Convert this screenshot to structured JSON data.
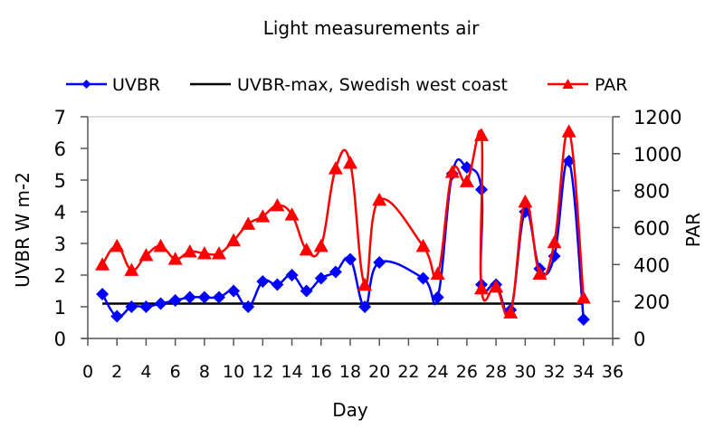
{
  "chart_data": {
    "type": "line",
    "title": "Light measurements air",
    "xlabel": "Day",
    "ylabel": "UVBR W m-2",
    "y2label": "PAR",
    "xlim": [
      0,
      36
    ],
    "ylim": [
      0,
      7
    ],
    "y2lim": [
      0,
      1200
    ],
    "xticks": [
      0,
      2,
      4,
      6,
      8,
      10,
      12,
      14,
      16,
      18,
      20,
      22,
      24,
      26,
      28,
      30,
      32,
      34,
      36
    ],
    "yticks": [
      0,
      1,
      2,
      3,
      4,
      5,
      6,
      7
    ],
    "y2ticks": [
      0,
      200,
      400,
      600,
      800,
      1000,
      1200
    ],
    "grid": false,
    "legend_position": "top",
    "series": [
      {
        "name": "UVBR",
        "axis": "left",
        "color": "#0000ff",
        "marker": "diamond",
        "x": [
          1,
          2,
          3,
          4,
          5,
          6,
          7,
          8,
          9,
          10,
          11,
          12,
          13,
          14,
          15,
          16,
          17,
          18,
          19,
          20,
          23,
          24,
          25,
          26,
          27,
          27,
          28,
          29,
          30,
          31,
          32,
          33,
          34
        ],
        "y": [
          1.4,
          0.7,
          1.0,
          1.0,
          1.1,
          1.2,
          1.3,
          1.3,
          1.3,
          1.5,
          1.0,
          1.8,
          1.7,
          2.0,
          1.5,
          1.9,
          2.1,
          2.5,
          1.0,
          2.4,
          1.9,
          1.3,
          5.2,
          5.4,
          4.7,
          1.7,
          1.7,
          0.9,
          4.0,
          2.2,
          2.6,
          5.6,
          0.6
        ]
      },
      {
        "name": "UVBR-max, Swedish west coast",
        "axis": "left",
        "color": "#000000",
        "marker": "none",
        "x": [
          1,
          34
        ],
        "y": [
          1.1,
          1.1
        ]
      },
      {
        "name": "PAR",
        "axis": "right",
        "color": "#ff0000",
        "marker": "triangle",
        "x": [
          1,
          2,
          3,
          4,
          5,
          6,
          7,
          8,
          9,
          10,
          11,
          12,
          13,
          14,
          15,
          16,
          17,
          18,
          19,
          20,
          23,
          24,
          25,
          26,
          27,
          27,
          28,
          29,
          30,
          31,
          32,
          33,
          34
        ],
        "y": [
          400,
          500,
          370,
          450,
          500,
          430,
          470,
          460,
          460,
          530,
          620,
          660,
          720,
          670,
          480,
          500,
          920,
          950,
          290,
          750,
          500,
          350,
          900,
          850,
          1100,
          270,
          280,
          140,
          740,
          350,
          520,
          1120,
          220
        ]
      }
    ]
  }
}
